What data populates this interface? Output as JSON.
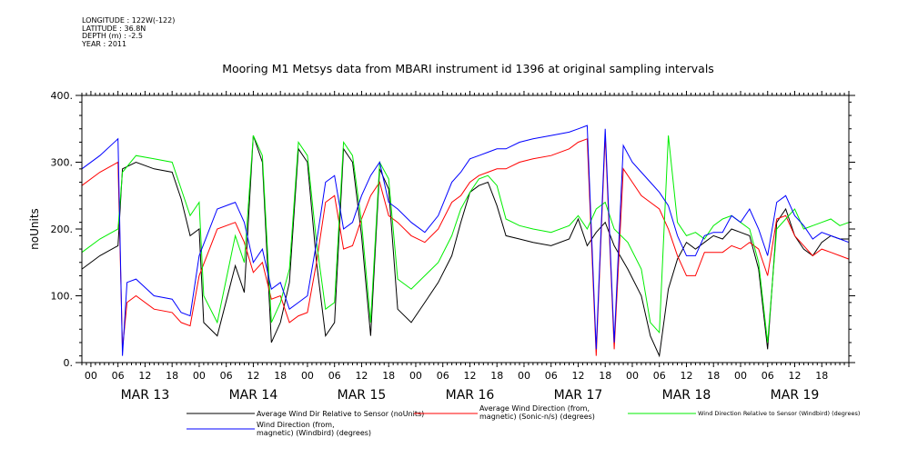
{
  "header": {
    "meta_lines": [
      "LONGITUDE : 122W(-122)",
      "LATITUDE : 36.8N",
      "DEPTH (m) : -2.5",
      "YEAR : 2011"
    ]
  },
  "chart_data": {
    "type": "line",
    "title": "Mooring M1 Metsys data from MBARI instrument id 1396 at original sampling intervals",
    "ylabel": "noUnits",
    "xlabel": "",
    "ylim": [
      0,
      400
    ],
    "yticks": [
      0,
      100,
      200,
      300,
      400
    ],
    "ytick_labels": [
      "0.",
      "100.",
      "200.",
      "300.",
      "400."
    ],
    "x_unit": "hours since MAR 12 2011 22:00",
    "xlim": [
      0,
      170
    ],
    "hour_ticks": [
      "00",
      "06",
      "12",
      "18",
      "00",
      "06",
      "12",
      "18",
      "00",
      "06",
      "12",
      "18",
      "00",
      "06",
      "12",
      "18",
      "00",
      "06",
      "12",
      "18",
      "00",
      "06",
      "12",
      "18",
      "00",
      "06",
      "12",
      "18"
    ],
    "day_labels": [
      "MAR 13",
      "MAR 14",
      "MAR 15",
      "MAR 16",
      "MAR 17",
      "MAR 18",
      "MAR 19"
    ],
    "grid": false,
    "legend_position": "bottom",
    "series": [
      {
        "name": "Average Wind Dir Relative to Sensor (noUnits)",
        "color": "#000000",
        "points": [
          [
            0,
            140
          ],
          [
            4,
            160
          ],
          [
            8,
            175
          ],
          [
            9,
            290
          ],
          [
            12,
            300
          ],
          [
            16,
            290
          ],
          [
            20,
            285
          ],
          [
            22,
            245
          ],
          [
            24,
            190
          ],
          [
            26,
            200
          ],
          [
            27,
            60
          ],
          [
            30,
            40
          ],
          [
            34,
            145
          ],
          [
            36,
            105
          ],
          [
            38,
            340
          ],
          [
            40,
            300
          ],
          [
            42,
            30
          ],
          [
            44,
            60
          ],
          [
            46,
            120
          ],
          [
            48,
            320
          ],
          [
            50,
            300
          ],
          [
            52,
            150
          ],
          [
            54,
            40
          ],
          [
            56,
            60
          ],
          [
            58,
            320
          ],
          [
            60,
            300
          ],
          [
            62,
            190
          ],
          [
            64,
            40
          ],
          [
            66,
            290
          ],
          [
            68,
            260
          ],
          [
            70,
            80
          ],
          [
            73,
            60
          ],
          [
            76,
            90
          ],
          [
            79,
            120
          ],
          [
            82,
            160
          ],
          [
            84,
            210
          ],
          [
            86,
            255
          ],
          [
            88,
            265
          ],
          [
            90,
            270
          ],
          [
            92,
            235
          ],
          [
            94,
            190
          ],
          [
            97,
            185
          ],
          [
            100,
            180
          ],
          [
            104,
            175
          ],
          [
            108,
            185
          ],
          [
            110,
            215
          ],
          [
            112,
            175
          ],
          [
            114,
            195
          ],
          [
            116,
            210
          ],
          [
            118,
            175
          ],
          [
            121,
            140
          ],
          [
            124,
            100
          ],
          [
            126,
            40
          ],
          [
            128,
            10
          ],
          [
            130,
            110
          ],
          [
            132,
            155
          ],
          [
            134,
            180
          ],
          [
            136,
            170
          ],
          [
            138,
            180
          ],
          [
            140,
            190
          ],
          [
            142,
            185
          ],
          [
            144,
            200
          ],
          [
            146,
            195
          ],
          [
            148,
            190
          ],
          [
            150,
            140
          ],
          [
            152,
            20
          ],
          [
            154,
            210
          ],
          [
            156,
            230
          ],
          [
            158,
            190
          ],
          [
            160,
            170
          ],
          [
            162,
            160
          ],
          [
            164,
            180
          ],
          [
            166,
            190
          ],
          [
            168,
            185
          ],
          [
            170,
            185
          ]
        ]
      },
      {
        "name": "Average Wind Direction (from, magnetic) (Sonic-n/s) (degrees)",
        "color": "#ff0000",
        "points": [
          [
            0,
            265
          ],
          [
            4,
            285
          ],
          [
            8,
            300
          ],
          [
            9,
            20
          ],
          [
            10,
            90
          ],
          [
            12,
            100
          ],
          [
            16,
            80
          ],
          [
            20,
            75
          ],
          [
            22,
            60
          ],
          [
            24,
            55
          ],
          [
            26,
            130
          ],
          [
            30,
            200
          ],
          [
            34,
            210
          ],
          [
            36,
            180
          ],
          [
            38,
            135
          ],
          [
            40,
            150
          ],
          [
            42,
            95
          ],
          [
            44,
            100
          ],
          [
            46,
            60
          ],
          [
            48,
            70
          ],
          [
            50,
            75
          ],
          [
            52,
            150
          ],
          [
            54,
            240
          ],
          [
            56,
            250
          ],
          [
            58,
            170
          ],
          [
            60,
            175
          ],
          [
            62,
            215
          ],
          [
            64,
            250
          ],
          [
            66,
            270
          ],
          [
            68,
            220
          ],
          [
            70,
            210
          ],
          [
            73,
            190
          ],
          [
            76,
            180
          ],
          [
            79,
            200
          ],
          [
            82,
            240
          ],
          [
            84,
            250
          ],
          [
            86,
            270
          ],
          [
            88,
            280
          ],
          [
            90,
            285
          ],
          [
            92,
            290
          ],
          [
            94,
            290
          ],
          [
            97,
            300
          ],
          [
            100,
            305
          ],
          [
            104,
            310
          ],
          [
            108,
            320
          ],
          [
            110,
            330
          ],
          [
            112,
            335
          ],
          [
            114,
            10
          ],
          [
            116,
            340
          ],
          [
            118,
            20
          ],
          [
            120,
            290
          ],
          [
            122,
            270
          ],
          [
            124,
            250
          ],
          [
            126,
            240
          ],
          [
            128,
            230
          ],
          [
            130,
            200
          ],
          [
            132,
            160
          ],
          [
            134,
            130
          ],
          [
            136,
            130
          ],
          [
            138,
            165
          ],
          [
            140,
            165
          ],
          [
            142,
            165
          ],
          [
            144,
            175
          ],
          [
            146,
            170
          ],
          [
            148,
            180
          ],
          [
            150,
            170
          ],
          [
            152,
            130
          ],
          [
            154,
            215
          ],
          [
            156,
            220
          ],
          [
            158,
            190
          ],
          [
            160,
            175
          ],
          [
            162,
            160
          ],
          [
            164,
            170
          ],
          [
            166,
            165
          ],
          [
            168,
            160
          ],
          [
            170,
            155
          ]
        ]
      },
      {
        "name": "Wind Direction Relative to Sensor (Windbird) (degrees)",
        "color": "#00ee00",
        "points": [
          [
            0,
            165
          ],
          [
            4,
            185
          ],
          [
            8,
            200
          ],
          [
            9,
            285
          ],
          [
            12,
            310
          ],
          [
            16,
            305
          ],
          [
            20,
            300
          ],
          [
            22,
            260
          ],
          [
            24,
            220
          ],
          [
            26,
            240
          ],
          [
            27,
            100
          ],
          [
            30,
            60
          ],
          [
            34,
            190
          ],
          [
            36,
            150
          ],
          [
            38,
            340
          ],
          [
            40,
            310
          ],
          [
            42,
            60
          ],
          [
            44,
            90
          ],
          [
            46,
            140
          ],
          [
            48,
            330
          ],
          [
            50,
            310
          ],
          [
            52,
            180
          ],
          [
            54,
            80
          ],
          [
            56,
            90
          ],
          [
            58,
            330
          ],
          [
            60,
            310
          ],
          [
            62,
            210
          ],
          [
            64,
            60
          ],
          [
            66,
            300
          ],
          [
            68,
            275
          ],
          [
            70,
            125
          ],
          [
            73,
            110
          ],
          [
            76,
            130
          ],
          [
            79,
            150
          ],
          [
            82,
            190
          ],
          [
            84,
            230
          ],
          [
            86,
            255
          ],
          [
            88,
            275
          ],
          [
            90,
            280
          ],
          [
            92,
            265
          ],
          [
            94,
            215
          ],
          [
            97,
            205
          ],
          [
            100,
            200
          ],
          [
            104,
            195
          ],
          [
            108,
            205
          ],
          [
            110,
            220
          ],
          [
            112,
            200
          ],
          [
            114,
            230
          ],
          [
            116,
            240
          ],
          [
            118,
            200
          ],
          [
            121,
            180
          ],
          [
            124,
            140
          ],
          [
            126,
            60
          ],
          [
            128,
            45
          ],
          [
            130,
            340
          ],
          [
            132,
            210
          ],
          [
            134,
            190
          ],
          [
            136,
            195
          ],
          [
            138,
            185
          ],
          [
            140,
            205
          ],
          [
            142,
            215
          ],
          [
            144,
            220
          ],
          [
            146,
            210
          ],
          [
            148,
            200
          ],
          [
            150,
            150
          ],
          [
            152,
            30
          ],
          [
            154,
            200
          ],
          [
            156,
            215
          ],
          [
            158,
            230
          ],
          [
            160,
            200
          ],
          [
            162,
            205
          ],
          [
            164,
            210
          ],
          [
            166,
            215
          ],
          [
            168,
            205
          ],
          [
            170,
            210
          ]
        ]
      },
      {
        "name": "Wind Direction (from, magnetic) (Windbird) (degrees)",
        "color": "#0000ff",
        "points": [
          [
            0,
            290
          ],
          [
            4,
            310
          ],
          [
            8,
            335
          ],
          [
            9,
            10
          ],
          [
            10,
            120
          ],
          [
            12,
            125
          ],
          [
            16,
            100
          ],
          [
            20,
            95
          ],
          [
            22,
            75
          ],
          [
            24,
            70
          ],
          [
            26,
            160
          ],
          [
            30,
            230
          ],
          [
            34,
            240
          ],
          [
            36,
            210
          ],
          [
            38,
            150
          ],
          [
            40,
            170
          ],
          [
            42,
            110
          ],
          [
            44,
            120
          ],
          [
            46,
            80
          ],
          [
            48,
            90
          ],
          [
            50,
            100
          ],
          [
            52,
            180
          ],
          [
            54,
            270
          ],
          [
            56,
            280
          ],
          [
            58,
            200
          ],
          [
            60,
            210
          ],
          [
            62,
            250
          ],
          [
            64,
            280
          ],
          [
            66,
            300
          ],
          [
            68,
            240
          ],
          [
            70,
            230
          ],
          [
            73,
            210
          ],
          [
            76,
            195
          ],
          [
            79,
            220
          ],
          [
            82,
            270
          ],
          [
            84,
            285
          ],
          [
            86,
            305
          ],
          [
            88,
            310
          ],
          [
            90,
            315
          ],
          [
            92,
            320
          ],
          [
            94,
            320
          ],
          [
            97,
            330
          ],
          [
            100,
            335
          ],
          [
            104,
            340
          ],
          [
            108,
            345
          ],
          [
            110,
            350
          ],
          [
            112,
            355
          ],
          [
            114,
            20
          ],
          [
            116,
            350
          ],
          [
            118,
            30
          ],
          [
            120,
            325
          ],
          [
            122,
            300
          ],
          [
            124,
            285
          ],
          [
            126,
            270
          ],
          [
            128,
            255
          ],
          [
            130,
            235
          ],
          [
            132,
            190
          ],
          [
            134,
            160
          ],
          [
            136,
            160
          ],
          [
            138,
            190
          ],
          [
            140,
            195
          ],
          [
            142,
            195
          ],
          [
            144,
            220
          ],
          [
            146,
            210
          ],
          [
            148,
            230
          ],
          [
            150,
            200
          ],
          [
            152,
            160
          ],
          [
            154,
            240
          ],
          [
            156,
            250
          ],
          [
            158,
            220
          ],
          [
            160,
            205
          ],
          [
            162,
            185
          ],
          [
            164,
            195
          ],
          [
            166,
            190
          ],
          [
            168,
            185
          ],
          [
            170,
            180
          ]
        ]
      }
    ]
  }
}
